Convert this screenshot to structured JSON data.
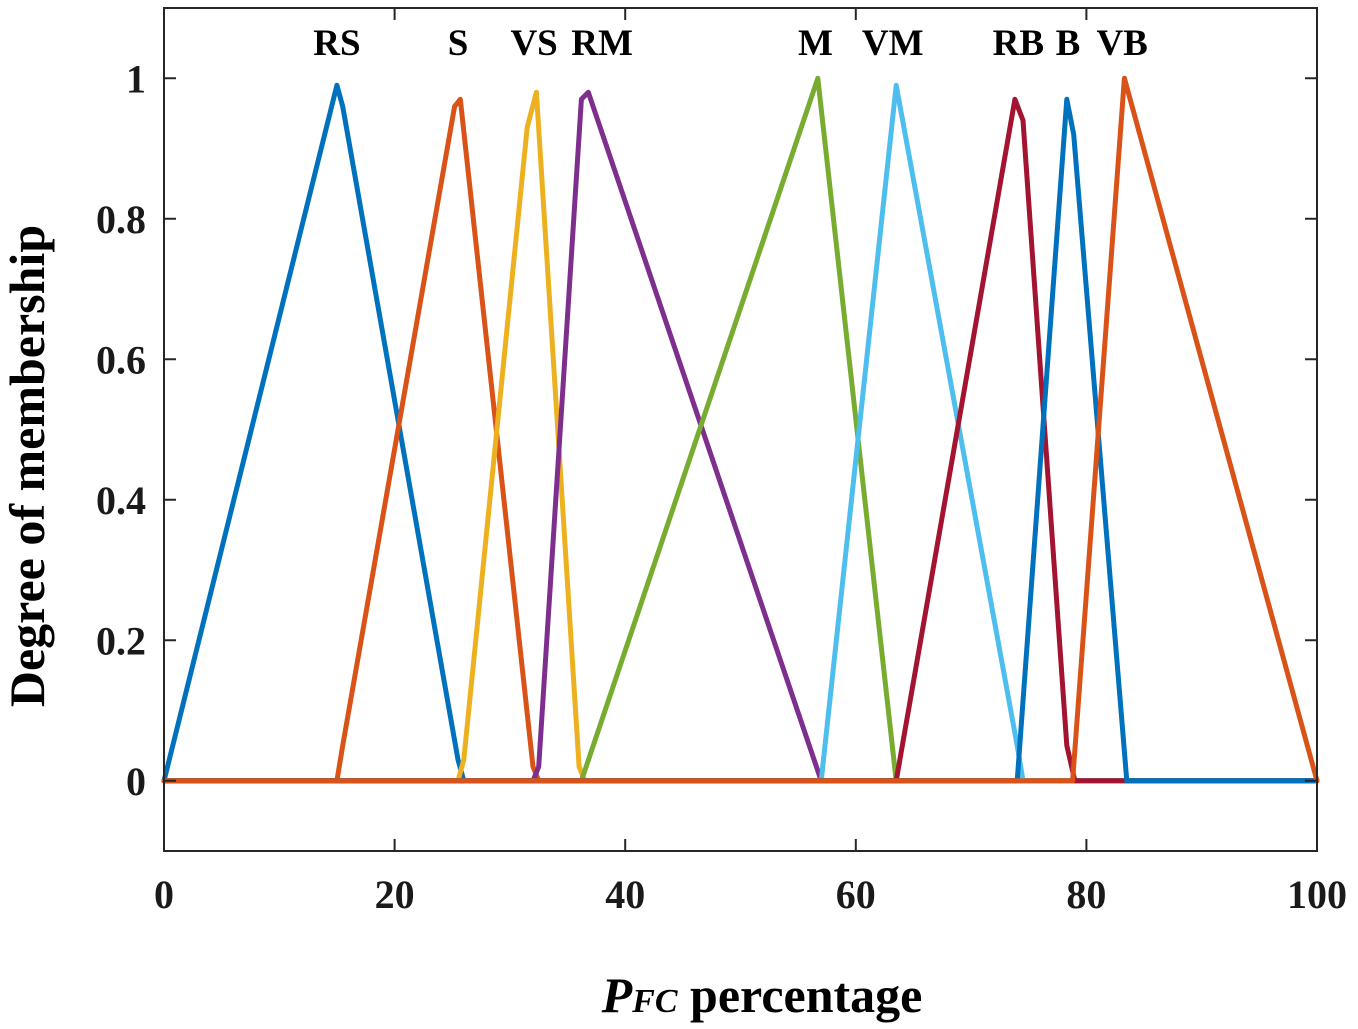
{
  "chart_data": {
    "type": "line",
    "title": "",
    "xlabel": {
      "symbol": "P",
      "subscript": "FC",
      "suffix": " percentage"
    },
    "ylabel": "Degree of membership",
    "xlim": [
      0,
      100
    ],
    "ylim": [
      -0.1,
      1.1
    ],
    "xticks": [
      0,
      20,
      40,
      60,
      80,
      100
    ],
    "yticks": [
      0,
      0.2,
      0.4,
      0.6,
      0.8,
      1
    ],
    "ytick_labels": [
      "0",
      "0.2",
      "0.4",
      "0.6",
      "0.8",
      "1"
    ],
    "grid": false,
    "series": [
      {
        "name": "RS",
        "color": "#0072BD",
        "x": [
          0,
          15,
          15.5,
          25.5,
          26,
          100
        ],
        "y": [
          0,
          0.99,
          0.96,
          0.03,
          0,
          0
        ]
      },
      {
        "name": "S",
        "color": "#D95319",
        "x": [
          0,
          15,
          15.5,
          25.2,
          25.7,
          32,
          32.5,
          100
        ],
        "y": [
          0,
          0,
          0.05,
          0.96,
          0.97,
          0.02,
          0,
          0
        ]
      },
      {
        "name": "VS",
        "color": "#EDB120",
        "x": [
          0,
          25.5,
          26,
          31.5,
          32.3,
          36,
          36.5,
          100
        ],
        "y": [
          0,
          0,
          0.03,
          0.93,
          0.98,
          0.02,
          0,
          0
        ]
      },
      {
        "name": "RM",
        "color": "#7E2F8E",
        "x": [
          0,
          32,
          32.5,
          36.2,
          36.8,
          57,
          100
        ],
        "y": [
          0,
          0,
          0.02,
          0.97,
          0.98,
          0,
          0
        ]
      },
      {
        "name": "M",
        "color": "#77AC30",
        "x": [
          0,
          36.2,
          56.7,
          63.5,
          100
        ],
        "y": [
          0,
          0,
          1.0,
          0,
          0
        ]
      },
      {
        "name": "VM",
        "color": "#4DBEEE",
        "x": [
          0,
          57,
          63.5,
          74,
          74.5,
          100
        ],
        "y": [
          0,
          0,
          0.99,
          0.05,
          0,
          0
        ]
      },
      {
        "name": "RB",
        "color": "#A2142F",
        "x": [
          0,
          63.5,
          73.8,
          74.5,
          78.3,
          79,
          100
        ],
        "y": [
          0,
          0,
          0.97,
          0.94,
          0.05,
          0,
          0
        ]
      },
      {
        "name": "B",
        "color": "#0072BD",
        "x": [
          0,
          74,
          78.3,
          78.9,
          83.5,
          100
        ],
        "y": [
          0,
          0,
          0.97,
          0.92,
          0,
          0
        ]
      },
      {
        "name": "VB",
        "color": "#D95319",
        "x": [
          0,
          78.8,
          83.3,
          100
        ],
        "y": [
          0,
          0,
          1.0,
          0
        ]
      }
    ],
    "annotations": [
      {
        "text": "RS",
        "x": 15,
        "y": 1.05
      },
      {
        "text": "S",
        "x": 25.5,
        "y": 1.05
      },
      {
        "text": "VS",
        "x": 32.1,
        "y": 1.05
      },
      {
        "text": "RM",
        "x": 38,
        "y": 1.05
      },
      {
        "text": "M",
        "x": 56.5,
        "y": 1.05
      },
      {
        "text": "VM",
        "x": 63.2,
        "y": 1.05
      },
      {
        "text": "RB",
        "x": 74.1,
        "y": 1.05
      },
      {
        "text": "B",
        "x": 78.4,
        "y": 1.05
      },
      {
        "text": "VB",
        "x": 83.1,
        "y": 1.05
      }
    ]
  }
}
